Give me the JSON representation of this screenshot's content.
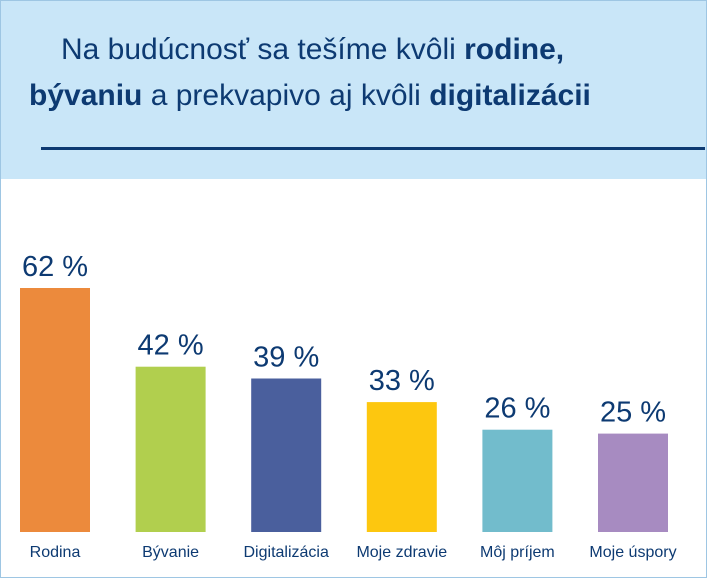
{
  "header": {
    "title_line1_pre": "Na budúcnosť sa tešíme kvôli ",
    "title_line1_bold": "rodine,",
    "title_line2_bold1": "bývaniu",
    "title_line2_mid": " a prekvapivo aj kvôli ",
    "title_line2_bold2": "digitalizácii"
  },
  "chart_data": {
    "type": "bar",
    "categories": [
      "Rodina",
      "Bývanie",
      "Digitalizácia",
      "Moje zdravie",
      "Môj príjem",
      "Moje úspory"
    ],
    "values": [
      62,
      42,
      39,
      33,
      26,
      25
    ],
    "value_labels": [
      "62 %",
      "42 %",
      "39 %",
      "33 %",
      "26 %",
      "25 %"
    ],
    "colors": [
      "#ec8a3c",
      "#b1cf4e",
      "#4a5f9d",
      "#fdc70f",
      "#72bccc",
      "#a78bc1"
    ],
    "ylim": [
      0,
      62
    ],
    "grid": false,
    "legend": "none"
  }
}
